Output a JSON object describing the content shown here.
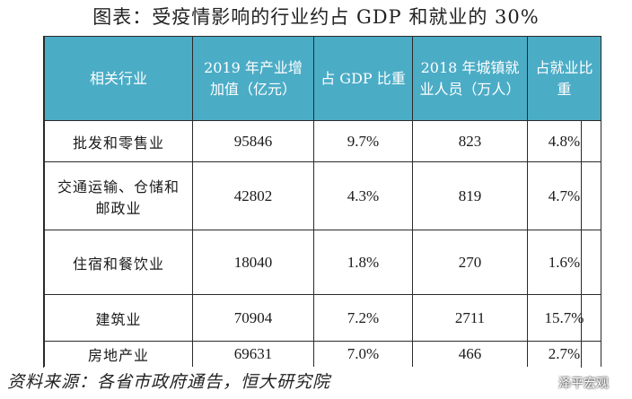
{
  "title": "图表：受疫情影响的行业约占 GDP 和就业的 30%",
  "table": {
    "headers": [
      "相关行业",
      "2019 年产业增加值（亿元）",
      "占 GDP 比重",
      "2018 年城镇就业人员（万人）",
      "占就业比重"
    ],
    "rows": [
      [
        "批发和零售业",
        "95846",
        "9.7%",
        "823",
        "4.8%"
      ],
      [
        "交通运输、仓储和邮政业",
        "42802",
        "4.3%",
        "819",
        "4.7%"
      ],
      [
        "住宿和餐饮业",
        "18040",
        "1.8%",
        "270",
        "1.6%"
      ],
      [
        "建筑业",
        "70904",
        "7.2%",
        "2711",
        "15.7%"
      ],
      [
        "房地产业",
        "69631",
        "7.0%",
        "466",
        "2.7%"
      ]
    ]
  },
  "source": "资料来源：各省市政府通告，恒大研究院",
  "watermark": {
    "label": "泽平宏观",
    "icon": "wechat-icon"
  },
  "colors": {
    "header_bg": "#4bacc6",
    "header_text": "#ffffff"
  }
}
